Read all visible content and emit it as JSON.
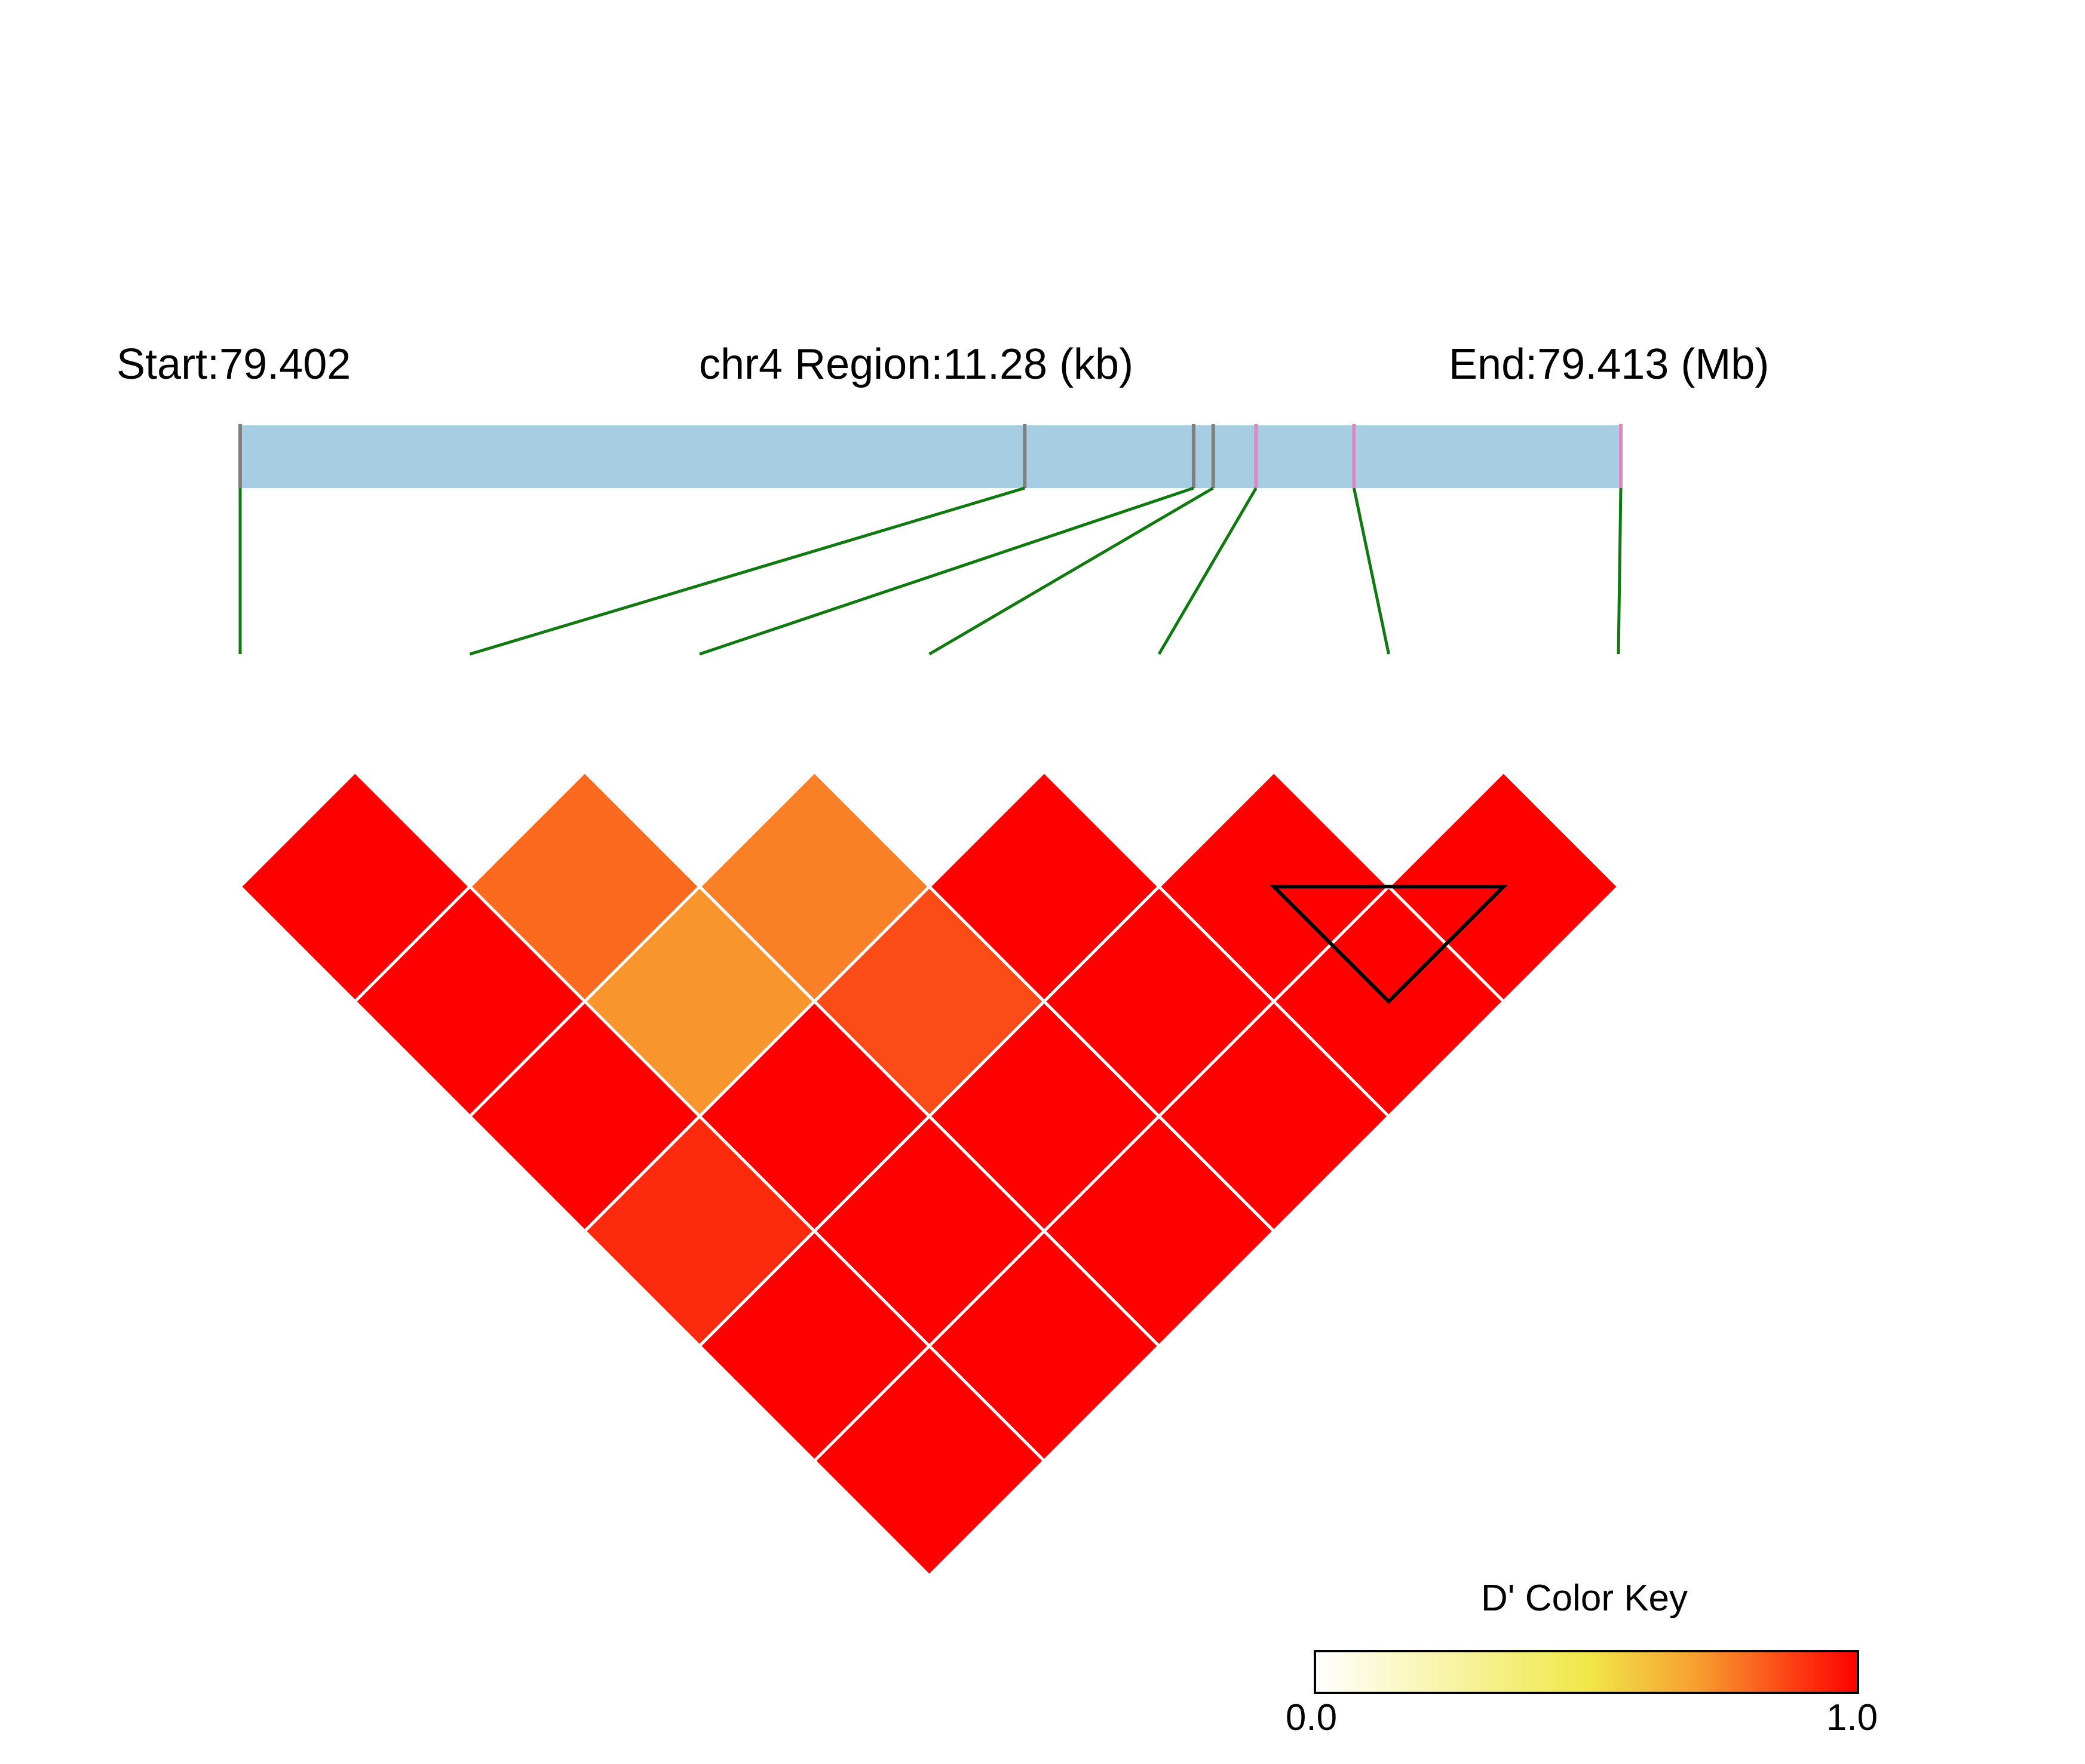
{
  "chart_data": {
    "type": "heatmap",
    "subtype": "linkage-disequilibrium-triangle",
    "header": {
      "start_label": "Start:79.402",
      "region_label": "chr4 Region:11.28 (kb)",
      "end_label": "End:79.413 (Mb)"
    },
    "start_mb": 79.402,
    "end_mb": 79.413,
    "region_kb": 11.28,
    "snp_count": 7,
    "snp_positions_kb": [
      0.0,
      6.41,
      7.79,
      7.95,
      8.3,
      9.1,
      11.28
    ],
    "snp_marker_colors": [
      "#7f7f7f",
      "#7f7f7f",
      "#7f7f7f",
      "#7f7f7f",
      "#dd88c2",
      "#dd88c2",
      "#dd88c2"
    ],
    "ld_matrix_dprime": [
      [
        1.0,
        0.8,
        0.76,
        1.0,
        1.0,
        1.0
      ],
      [
        1.0,
        0.72,
        0.86,
        1.0,
        1.0
      ],
      [
        1.0,
        1.0,
        1.0,
        1.0
      ],
      [
        0.92,
        1.0,
        1.0
      ],
      [
        1.0,
        1.0
      ],
      [
        1.0
      ]
    ],
    "ld_matrix_note": "row d = SNP distance d+1; entry i = D' between SNP i and SNP i+d+1",
    "haplotype_block_snps": [
      5,
      6,
      7
    ],
    "color_key": {
      "title": "D' Color Key",
      "min_label": "0.0",
      "max_label": "1.0",
      "min": 0.0,
      "max": 1.0,
      "colors": [
        "#ffffff",
        "#f0e84a",
        "#f7a030",
        "#ff0000"
      ]
    },
    "colors": {
      "region_bar": "#a6cde2",
      "connector_line": "#107a10",
      "cell_border": "#ffffff",
      "block_outline": "#000000"
    }
  }
}
